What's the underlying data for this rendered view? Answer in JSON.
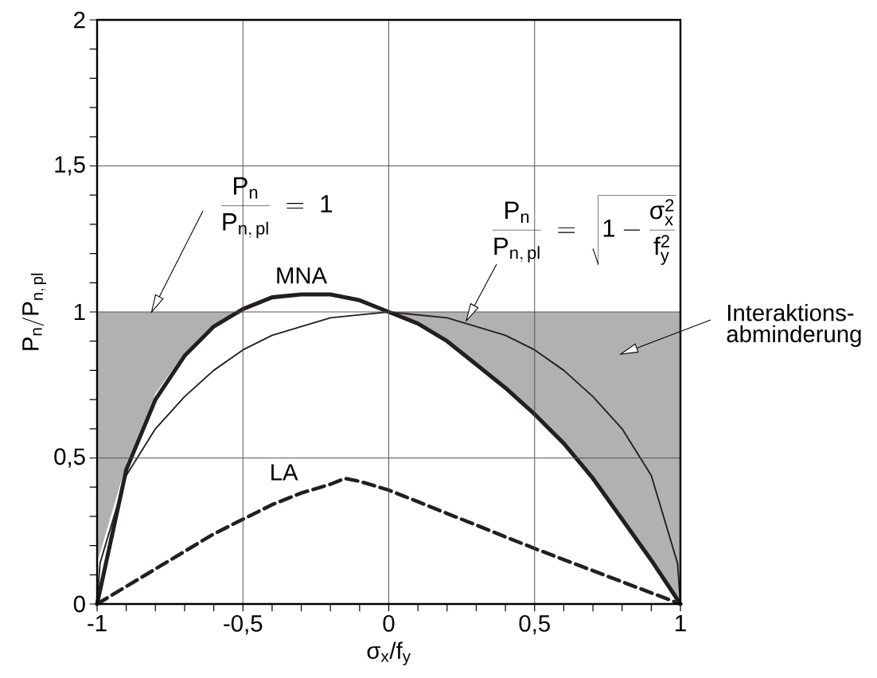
{
  "chart_data": {
    "type": "line",
    "xlabel": "σ$_{x}$/f$_{y}$",
    "ylabel": "\\mathrm{P_{n}}/\\mathrm{P_{n,\\,pl}}",
    "xlim": [
      -1,
      1
    ],
    "ylim": [
      0,
      2
    ],
    "xticks": [
      -1,
      {
        "value": -0.9,
        "label": null
      },
      {
        "value": -0.8,
        "label": null
      },
      {
        "value": -0.7,
        "label": null
      },
      {
        "value": -0.6,
        "label": null
      },
      {
        "value": -0.5,
        "label": "-0,5"
      },
      {
        "value": -0.4,
        "label": null
      },
      {
        "value": -0.3,
        "label": null
      },
      {
        "value": -0.2,
        "label": null
      },
      {
        "value": -0.1,
        "label": null
      },
      0,
      {
        "value": 0.1,
        "label": null
      },
      {
        "value": 0.2,
        "label": null
      },
      {
        "value": 0.3,
        "label": null
      },
      {
        "value": 0.4,
        "label": null
      },
      {
        "value": 0.5,
        "label": "0,5"
      },
      {
        "value": 0.6,
        "label": null
      },
      {
        "value": 0.7,
        "label": null
      },
      {
        "value": 0.8,
        "label": null
      },
      {
        "value": 0.9,
        "label": null
      },
      1
    ],
    "yticks": [
      0,
      {
        "value": 0.1,
        "label": null
      },
      {
        "value": 0.2,
        "label": null
      },
      {
        "value": 0.3,
        "label": null
      },
      {
        "value": 0.4,
        "label": null
      },
      {
        "value": 0.5,
        "label": "0,5"
      },
      {
        "value": 0.6,
        "label": null
      },
      {
        "value": 0.7,
        "label": null
      },
      {
        "value": 0.8,
        "label": null
      },
      {
        "value": 0.9,
        "label": null
      },
      1,
      {
        "value": 1.1,
        "label": null
      },
      {
        "value": 1.2,
        "label": null
      },
      {
        "value": 1.3,
        "label": null
      },
      {
        "value": 1.4,
        "label": null
      },
      {
        "value": 1.5,
        "label": "1,5"
      },
      {
        "value": 1.6,
        "label": null
      },
      {
        "value": 1.7,
        "label": null
      },
      {
        "value": 1.8,
        "label": null
      },
      {
        "value": 1.9,
        "label": null
      },
      2
    ],
    "grid": true,
    "series": [
      {
        "name": "MNA",
        "color": "#231f20",
        "x": [
          -1,
          -0.9,
          -0.8,
          -0.7,
          -0.6,
          -0.5,
          -0.4,
          -0.3,
          -0.2,
          -0.1,
          0,
          0.1,
          0.2,
          0.3,
          0.4,
          0.5,
          0.6,
          0.7,
          0.8,
          0.9,
          1
        ],
        "values": [
          0,
          0.46,
          0.7,
          0.85,
          0.95,
          1.01,
          1.05,
          1.06,
          1.06,
          1.04,
          1,
          0.96,
          0.9,
          0.82,
          0.74,
          0.65,
          0.55,
          0.43,
          0.29,
          0.15,
          0
        ],
        "lower": [
          0.14,
          0.48,
          0.72,
          0.86,
          0.95,
          1,
          null,
          null,
          null,
          null,
          1,
          0.96,
          0.9,
          0.82,
          0.74,
          0.65,
          0.55,
          0.43,
          0.29,
          0.15,
          0
        ],
        "upper": [
          1,
          1,
          1,
          1,
          1,
          1,
          null,
          null,
          null,
          null,
          1,
          1,
          1,
          1,
          1,
          1,
          1,
          1,
          1,
          1,
          1
        ]
      },
      {
        "color": "#231f20",
        "x": [
          -1,
          -0.99,
          -0.9,
          -0.8,
          -0.7,
          -0.6,
          -0.5,
          -0.4,
          -0.3,
          -0.2,
          -0.1,
          0,
          0.1,
          0.2,
          0.3,
          0.4,
          0.5,
          0.6,
          0.7,
          0.8,
          0.9,
          0.99,
          1
        ],
        "values": [
          0,
          0.14,
          0.44,
          0.6,
          0.71,
          0.8,
          0.87,
          0.92,
          0.95,
          0.98,
          0.99,
          1,
          0.99,
          0.98,
          0.95,
          0.92,
          0.87,
          0.8,
          0.71,
          0.6,
          0.44,
          0.14,
          0
        ]
      },
      {
        "name": "LA",
        "color": "#231f20",
        "line_style": "dashed",
        "x": [
          -1,
          -0.9,
          -0.8,
          -0.7,
          -0.6,
          -0.5,
          -0.4,
          -0.3,
          -0.2,
          -0.15,
          -0.1,
          0,
          0.5,
          1
        ],
        "values": [
          0,
          0.06,
          0.12,
          0.18,
          0.24,
          0.29,
          0.34,
          0.38,
          0.41,
          0.43,
          0.42,
          0.39,
          0.19,
          0
        ]
      }
    ],
    "annotations": [
      "\\frac{\\mathrm{P_{n}}}{\\mathrm{P_{n,\\,pl}}}\\;=\\;\\mathrm{1}",
      "\\frac{\\mathrm{P_{n}}}{\\mathrm{P_{n,\\,pl}}}\\;=\\;\\sqrt{\\mathrm{1}-\\frac{\\mbox{σ}_{\\mathrm{x}}^{\\mathrm{2}}}{\\mathrm{f}_{\\mathrm{y}}^{\\mathrm{2}}}}",
      "Interaktions-abminderung"
    ]
  }
}
